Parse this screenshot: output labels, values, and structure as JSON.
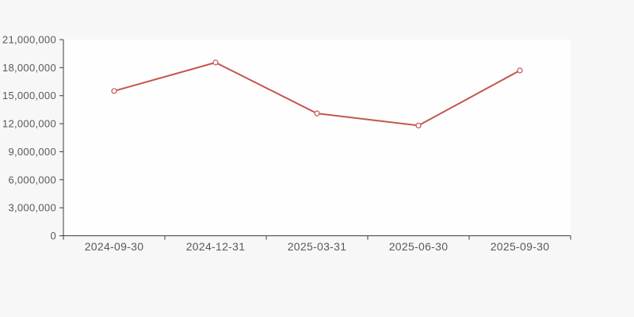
{
  "colors": {
    "background": "#f7f7f7",
    "plot_background": "#fefefe",
    "line": "#c45550",
    "marker_fill": "#ffffff",
    "axis": "#3f3f3f",
    "text": "#595959"
  },
  "chart_data": {
    "type": "line",
    "title": "",
    "xlabel": "",
    "ylabel": "",
    "categories": [
      "2024-09-30",
      "2024-12-31",
      "2025-03-31",
      "2025-06-30",
      "2025-09-30"
    ],
    "values": [
      15500000,
      18550000,
      13100000,
      11800000,
      17700000
    ],
    "ylim": [
      0,
      21000000
    ],
    "y_tick_step": 3000000,
    "y_tick_values": [
      0,
      3000000,
      6000000,
      9000000,
      12000000,
      15000000,
      18000000,
      21000000
    ],
    "y_tick_labels": [
      "0",
      "3,000,000",
      "6,000,000",
      "9,000,000",
      "12,000,000",
      "15,000,000",
      "18,000,000",
      "21,000,000"
    ],
    "grid": false,
    "legend_position": "none",
    "marker": "hollow-circle"
  }
}
